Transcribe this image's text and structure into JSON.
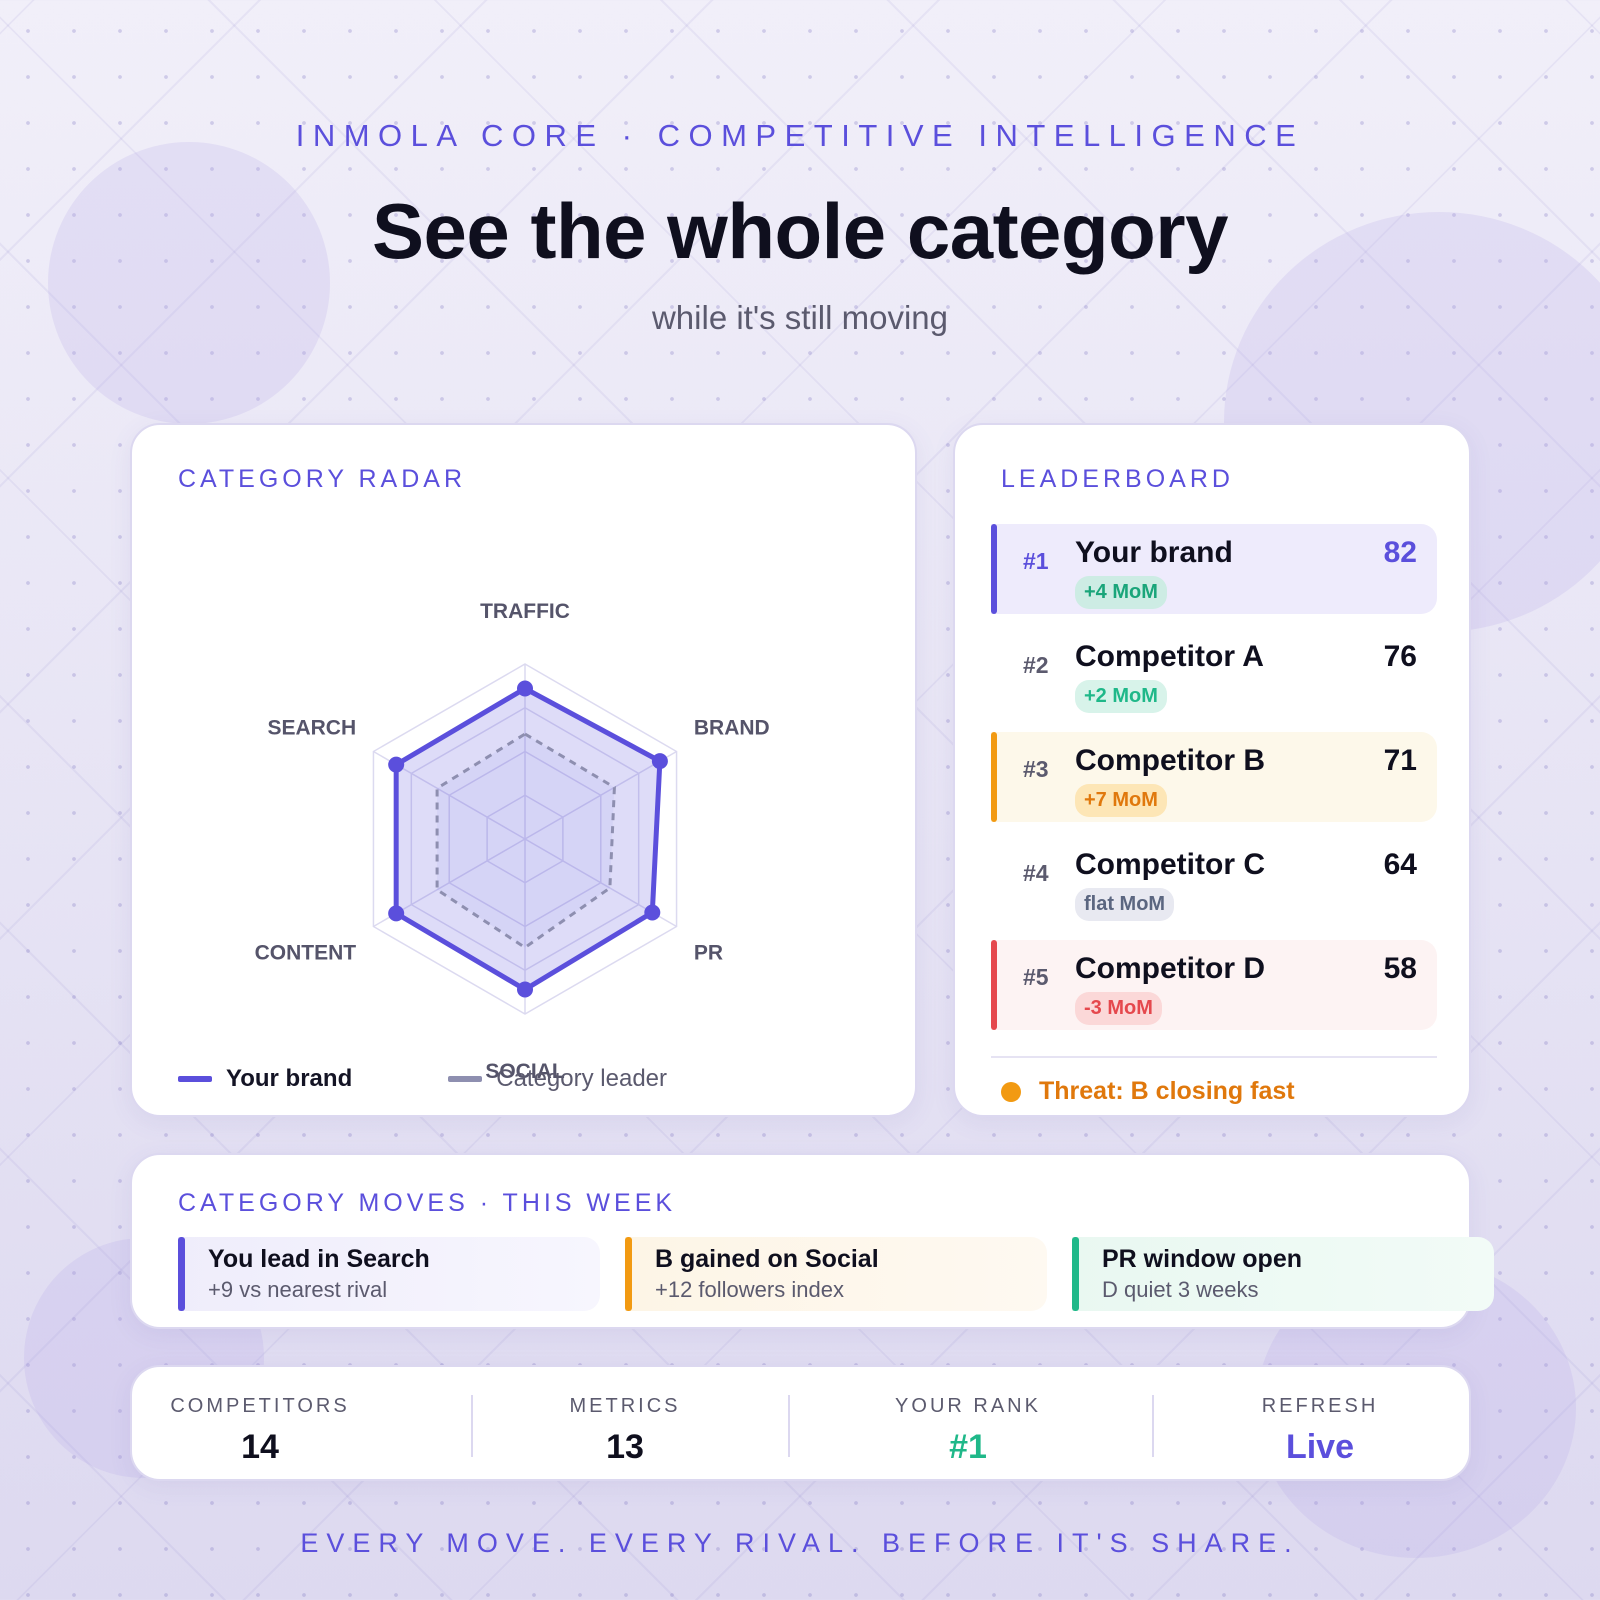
{
  "header": {
    "eyebrow": "INMOLA CORE · COMPETITIVE INTELLIGENCE",
    "title": "See the whole category",
    "subtitle": "while it's still moving"
  },
  "colors": {
    "accent": "#5b4fdc",
    "leader_line": "#8e8fb0",
    "green": "#1fb889",
    "amber": "#f29a12",
    "red": "#e5484d"
  },
  "radar": {
    "title": "CATEGORY RADAR",
    "axes": [
      "TRAFFIC",
      "BRAND",
      "PR",
      "SOCIAL",
      "CONTENT",
      "SEARCH"
    ],
    "max": 100,
    "series": [
      {
        "name": "Your brand",
        "values": [
          86,
          89,
          84,
          86,
          85,
          85
        ]
      },
      {
        "name": "Category leader",
        "values": [
          60,
          59,
          56,
          62,
          58,
          58
        ]
      }
    ],
    "legend": {
      "brand": "Your brand",
      "leader": "Category leader"
    }
  },
  "leaderboard": {
    "title": "LEADERBOARD",
    "rows": [
      {
        "rank": "#1",
        "name": "Your brand",
        "score": "82",
        "change": "+4 MoM",
        "tone": "accent"
      },
      {
        "rank": "#2",
        "name": "Competitor A",
        "score": "76",
        "change": "+2 MoM",
        "tone": "neutral-green"
      },
      {
        "rank": "#3",
        "name": "Competitor B",
        "score": "71",
        "change": "+7 MoM",
        "tone": "amber"
      },
      {
        "rank": "#4",
        "name": "Competitor C",
        "score": "64",
        "change": "flat MoM",
        "tone": "neutral"
      },
      {
        "rank": "#5",
        "name": "Competitor D",
        "score": "58",
        "change": "-3 MoM",
        "tone": "red"
      }
    ],
    "threat": "Threat: B closing fast"
  },
  "moves": {
    "title": "CATEGORY MOVES · THIS WEEK",
    "items": [
      {
        "title": "You lead in Search",
        "subtitle": "+9 vs nearest rival",
        "tone": "accent"
      },
      {
        "title": "B gained on Social",
        "subtitle": "+12 followers index",
        "tone": "amber"
      },
      {
        "title": "PR window open",
        "subtitle": "D quiet 3 weeks",
        "tone": "green"
      }
    ]
  },
  "stats": [
    {
      "label": "COMPETITORS",
      "value": "14"
    },
    {
      "label": "METRICS",
      "value": "13"
    },
    {
      "label": "YOUR RANK",
      "value": "#1"
    },
    {
      "label": "REFRESH",
      "value": "Live"
    }
  ],
  "tagline": "EVERY MOVE. EVERY RIVAL. BEFORE IT'S SHARE."
}
